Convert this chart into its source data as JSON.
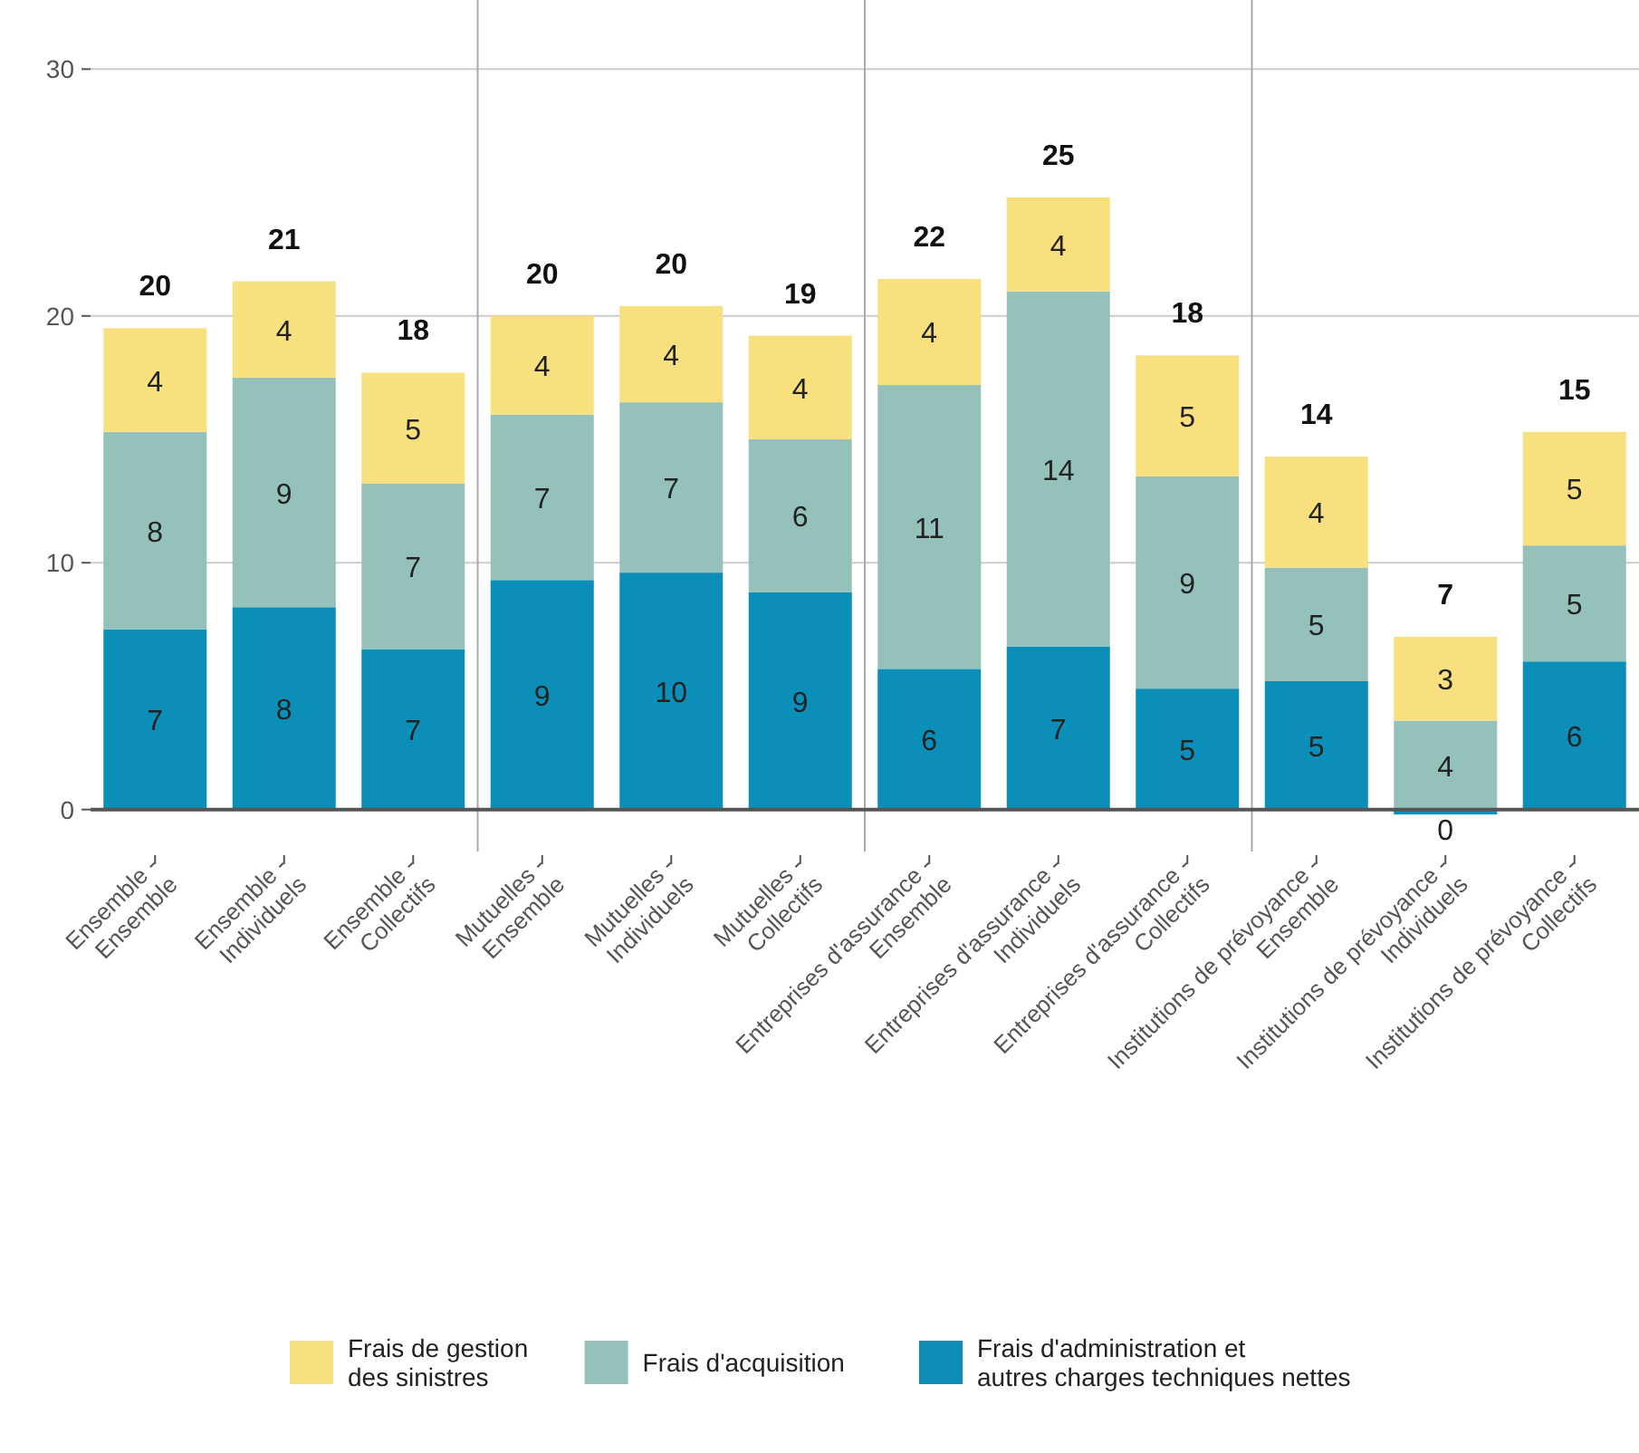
{
  "chart_data": {
    "type": "bar",
    "stacked": true,
    "categories": [
      "Ensemble - Ensemble",
      "Ensemble - Individuels",
      "Ensemble - Collectifs",
      "Mutuelles - Ensemble",
      "Mutuelles - Individuels",
      "Mutuelles - Collectifs",
      "Entreprises d'assurance - Ensemble",
      "Entreprises d'assurance - Individuels",
      "Entreprises d'assurance - Collectifs",
      "Institutions de prévoyance - Ensemble",
      "Institutions de prévoyance - Individuels",
      "Institutions de prévoyance - Collectifs"
    ],
    "series": [
      {
        "name": "Frais d'administration et autres charges techniques nettes",
        "color": "#0b8fb8",
        "values": [
          7.3,
          8.2,
          6.5,
          9.3,
          9.6,
          8.8,
          5.7,
          6.6,
          4.9,
          5.2,
          -0.2,
          6.0
        ],
        "value_labels": [
          "7",
          "8",
          "7",
          "9",
          "10",
          "9",
          "6",
          "7",
          "5",
          "5",
          "0",
          "6"
        ]
      },
      {
        "name": "Frais d'acquisition",
        "color": "#95c1bb",
        "values": [
          8.0,
          9.3,
          6.7,
          6.7,
          6.9,
          6.2,
          11.5,
          14.4,
          8.6,
          4.6,
          3.6,
          4.7
        ],
        "value_labels": [
          "8",
          "9",
          "7",
          "7",
          "7",
          "6",
          "11",
          "14",
          "9",
          "5",
          "4",
          "5"
        ]
      },
      {
        "name": "Frais de gestion des sinistres",
        "color": "#f8e07f",
        "values": [
          4.2,
          3.9,
          4.5,
          4.0,
          3.9,
          4.2,
          4.3,
          3.8,
          4.9,
          4.5,
          3.4,
          4.6
        ],
        "value_labels": [
          "4",
          "4",
          "5",
          "4",
          "4",
          "4",
          "4",
          "4",
          "5",
          "4",
          "3",
          "5"
        ]
      }
    ],
    "totals": [
      "20",
      "21",
      "18",
      "20",
      "20",
      "19",
      "22",
      "25",
      "18",
      "14",
      "7",
      "15"
    ],
    "ylim": [
      -1.7,
      32.8
    ],
    "yticks": [
      0,
      10,
      20,
      30
    ],
    "grid": "y",
    "legend": "bottom"
  }
}
